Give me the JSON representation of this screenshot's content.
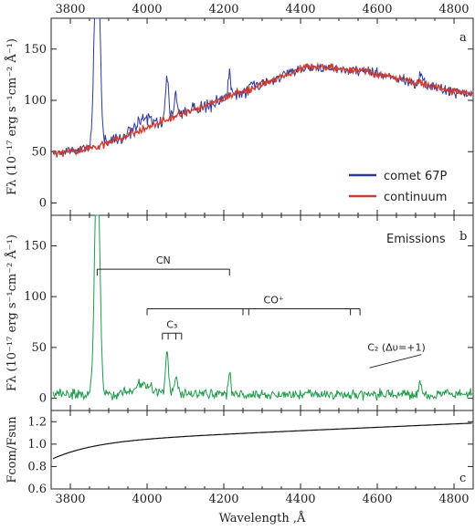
{
  "chart_data": {
    "type": "line",
    "xlabel": "Wavelength ,Å",
    "xlim": [
      3750,
      4850
    ],
    "x_ticks": [
      3800,
      4000,
      4200,
      4400,
      4600,
      4800
    ],
    "panels": [
      {
        "id": "a",
        "letter": "a",
        "ylabel": "Fλ (10⁻¹⁷ erg s⁻¹cm⁻² Å⁻¹)",
        "ylim": [
          -12,
          180
        ],
        "y_ticks": [
          0,
          50,
          100,
          150
        ],
        "legend_position": "bottom-right",
        "series": [
          {
            "name": "comet 67P",
            "color": "#2b3a9a"
          },
          {
            "name": "continuum",
            "color": "#d23a2f"
          }
        ]
      },
      {
        "id": "b",
        "letter": "b",
        "title": "Emissions",
        "ylabel": "Fλ (10⁻¹⁷ erg s⁻¹cm⁻² Å⁻¹)",
        "ylim": [
          -12,
          180
        ],
        "y_ticks": [
          0,
          50,
          100,
          150
        ],
        "series": [
          {
            "name": "",
            "color": "#1f9a4a"
          }
        ],
        "annotations": [
          {
            "label": "CN",
            "bracket": [
              3870,
              4215
            ],
            "y": 127,
            "ticks": [
              3870,
              4215
            ]
          },
          {
            "label": "CO⁺",
            "bracket": [
              4000,
              4555
            ],
            "y": 88,
            "ticks": [
              4000,
              4250,
              4265,
              4530,
              4555
            ]
          },
          {
            "label": "C₃",
            "bracket": [
              4040,
              4090
            ],
            "y": 64,
            "ticks": [
              4040,
              4055,
              4075,
              4090
            ]
          },
          {
            "label": "C₂ (Δυ=+1)",
            "line": [
              [
                4580,
                30
              ],
              [
                4715,
                43
              ]
            ]
          }
        ]
      },
      {
        "id": "c",
        "letter": "c",
        "ylabel": "Fcom/Fsun",
        "ylim": [
          0.6,
          1.3
        ],
        "y_ticks": [
          0.6,
          0.8,
          1.0,
          1.2
        ],
        "series": [
          {
            "name": "",
            "color": "#111111"
          }
        ]
      }
    ]
  }
}
